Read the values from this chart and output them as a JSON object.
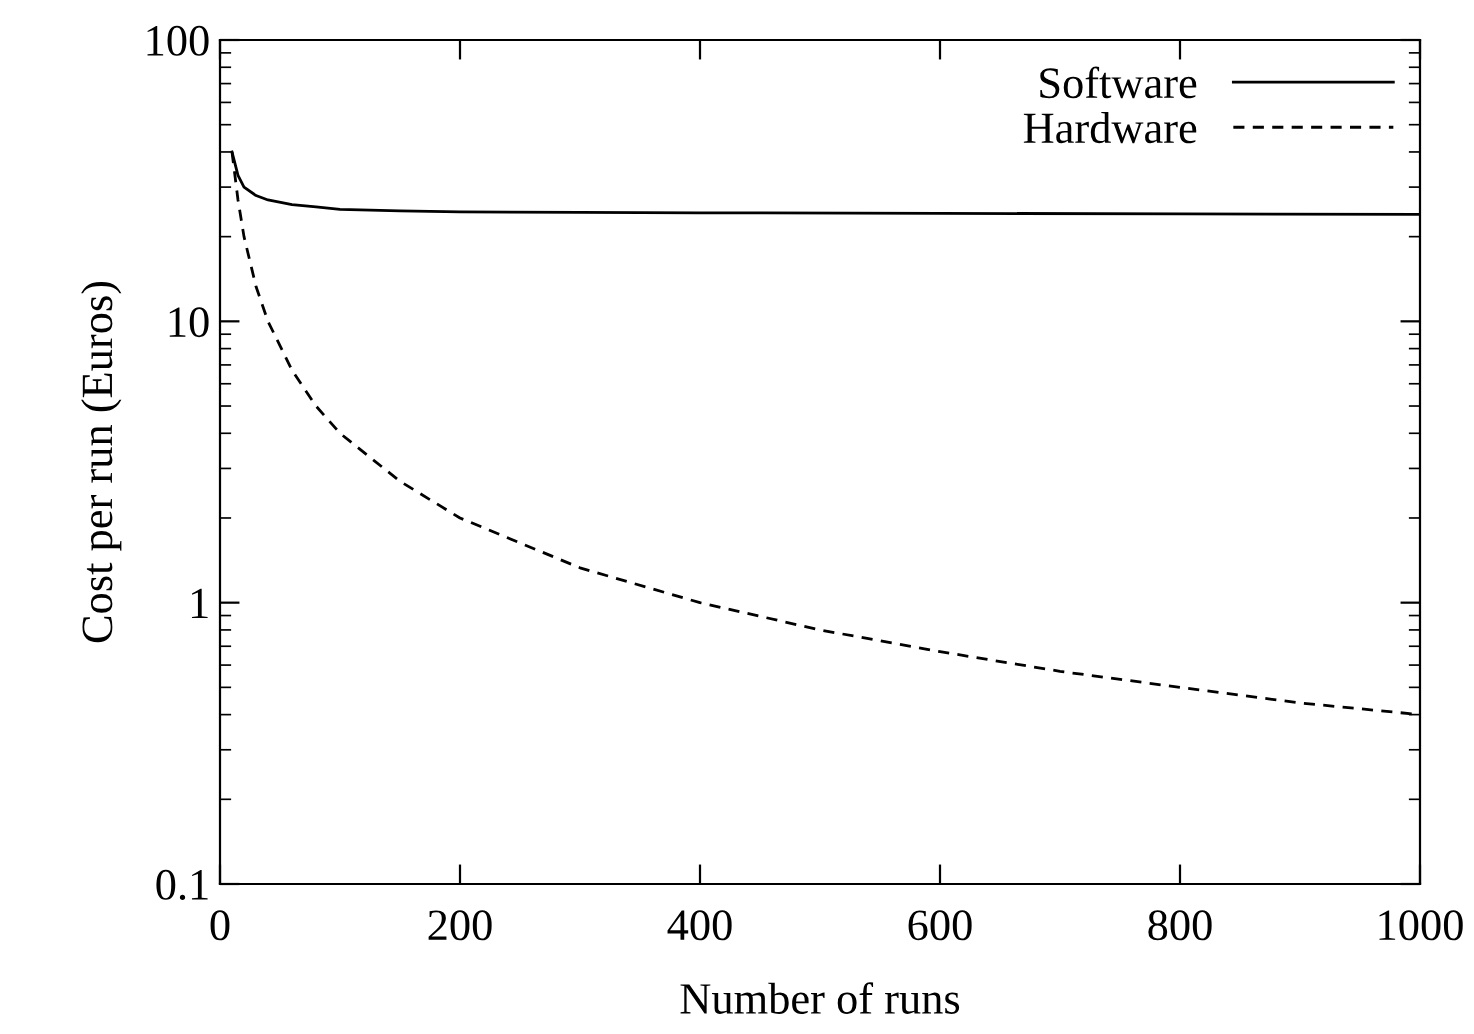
{
  "chart_data": {
    "type": "line",
    "xlabel": "Number of runs",
    "ylabel": "Cost per run (Euros)",
    "log": "y",
    "xlim": [
      0,
      1000
    ],
    "ylim": [
      0.1,
      100
    ],
    "xticks": [
      0,
      200,
      400,
      600,
      800,
      1000
    ],
    "yticks": [
      0.1,
      1,
      10,
      100
    ],
    "grid": false,
    "legend": "top right",
    "marker": "none",
    "series": [
      {
        "name": "Software",
        "color": "#000000",
        "line_style": "solid",
        "x": [
          10,
          15,
          20,
          30,
          40,
          60,
          80,
          100,
          150,
          200,
          300,
          400,
          600,
          800,
          1000
        ],
        "values": [
          40,
          33,
          30,
          28,
          27,
          26,
          25.5,
          25,
          24.7,
          24.5,
          24.4,
          24.3,
          24.2,
          24.1,
          24
        ]
      },
      {
        "name": "Hardware",
        "color": "#000000",
        "line_style": "dashed",
        "x": [
          10,
          15,
          20,
          30,
          40,
          60,
          80,
          100,
          150,
          200,
          300,
          400,
          500,
          600,
          700,
          800,
          900,
          1000
        ],
        "values": [
          40,
          27,
          20,
          13.3,
          10,
          6.7,
          5,
          4,
          2.7,
          2,
          1.33,
          1,
          0.8,
          0.67,
          0.57,
          0.5,
          0.44,
          0.4
        ]
      }
    ]
  }
}
